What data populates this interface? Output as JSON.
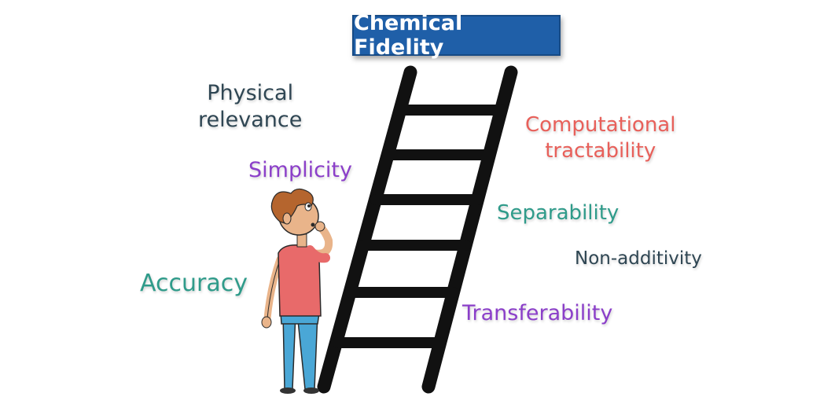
{
  "title": "Chemical Fidelity",
  "labels": {
    "physical_relevance_line1": "Physical",
    "physical_relevance_line2": "relevance",
    "simplicity": "Simplicity",
    "accuracy": "Accuracy",
    "computational_line1": "Computational",
    "computational_line2": "tractability",
    "separability": "Separability",
    "non_additivity": "Non-additivity",
    "transferability": "Transferability"
  },
  "colors": {
    "title_bg": "#1f5fa8",
    "dark_slate": "#2f4653",
    "purple": "#8b3fc9",
    "teal": "#2f9b8a",
    "coral": "#e8605a",
    "ladder": "#111111"
  },
  "illustration": {
    "ladder": "ladder-icon",
    "person": "person-looking-up-icon"
  }
}
